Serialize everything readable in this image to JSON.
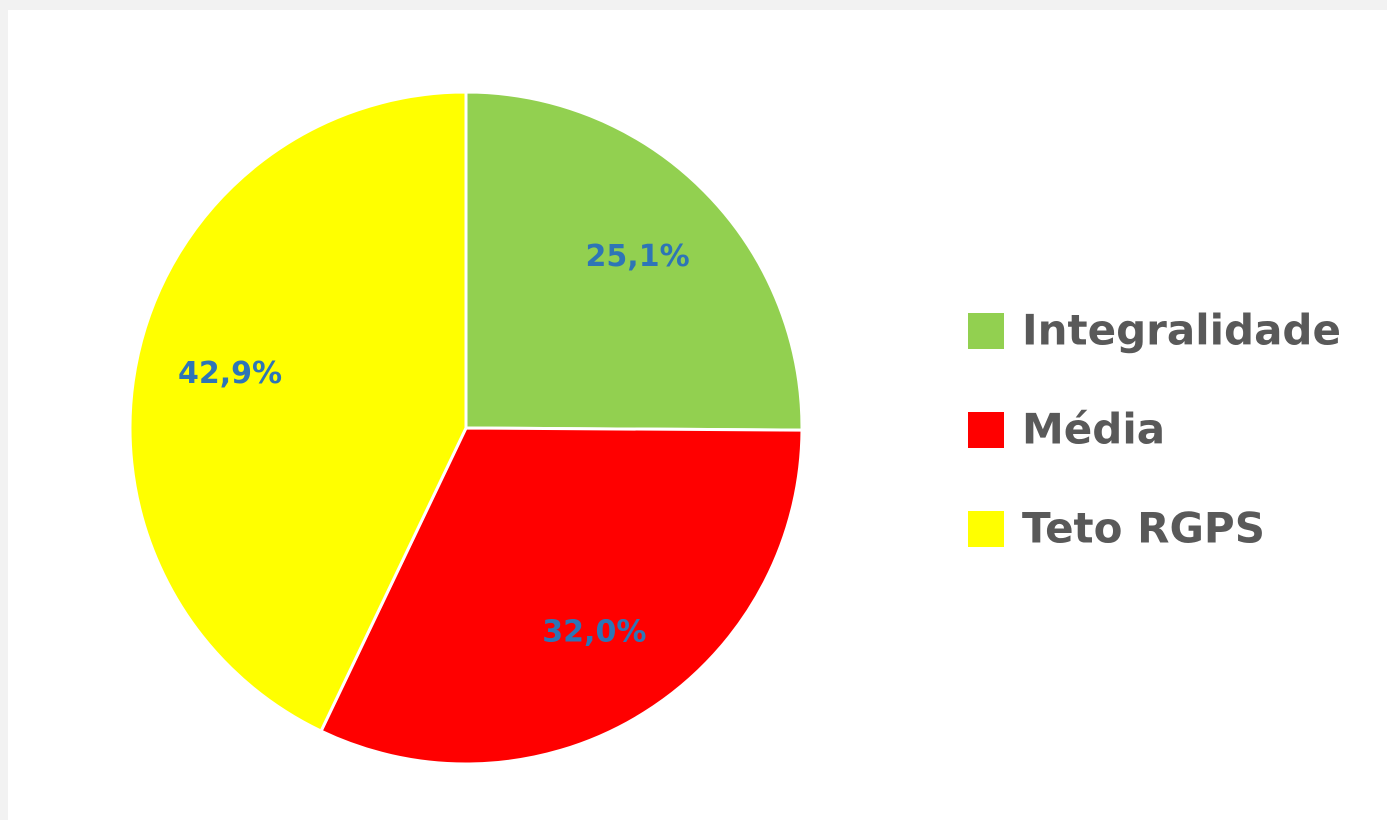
{
  "chart_data": {
    "type": "pie",
    "categories": [
      "Integralidade",
      "Média",
      "Teto RGPS"
    ],
    "values": [
      25.1,
      32.0,
      42.9
    ],
    "value_labels": [
      "25,1%",
      "32,0%",
      "42,9%"
    ],
    "colors": [
      "#92d050",
      "#ff0000",
      "#ffff00"
    ],
    "legend": "right"
  }
}
